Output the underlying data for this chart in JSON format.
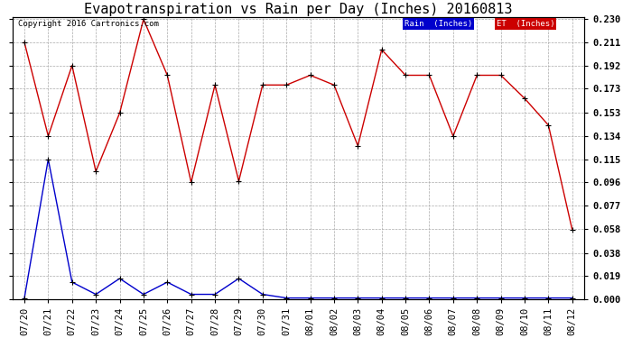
{
  "title": "Evapotranspiration vs Rain per Day (Inches) 20160813",
  "copyright_text": "Copyright 2016 Cartronics.com",
  "dates": [
    "07/20",
    "07/21",
    "07/22",
    "07/23",
    "07/24",
    "07/25",
    "07/26",
    "07/27",
    "07/28",
    "07/29",
    "07/30",
    "07/31",
    "08/01",
    "08/02",
    "08/03",
    "08/04",
    "08/05",
    "08/06",
    "08/07",
    "08/08",
    "08/09",
    "08/10",
    "08/11",
    "08/12"
  ],
  "et_values": [
    0.211,
    0.134,
    0.192,
    0.105,
    0.153,
    0.23,
    0.184,
    0.096,
    0.176,
    0.097,
    0.176,
    0.176,
    0.184,
    0.176,
    0.126,
    0.205,
    0.184,
    0.184,
    0.134,
    0.184,
    0.184,
    0.165,
    0.143,
    0.057
  ],
  "rain_values": [
    0.001,
    0.115,
    0.014,
    0.004,
    0.017,
    0.004,
    0.014,
    0.004,
    0.004,
    0.017,
    0.004,
    0.001,
    0.001,
    0.001,
    0.001,
    0.001,
    0.001,
    0.001,
    0.001,
    0.001,
    0.001,
    0.001,
    0.001,
    0.001
  ],
  "et_color": "#cc0000",
  "rain_color": "#0000cc",
  "background_color": "#ffffff",
  "grid_color": "#aaaaaa",
  "ylim_min": 0.0,
  "ylim_max": 0.2318,
  "yticks": [
    0.0,
    0.019,
    0.038,
    0.058,
    0.077,
    0.096,
    0.115,
    0.134,
    0.153,
    0.173,
    0.192,
    0.211,
    0.23
  ],
  "title_fontsize": 11,
  "copyright_fontsize": 6.5,
  "tick_fontsize": 7.5,
  "legend_rain_bg": "#0000cc",
  "legend_et_bg": "#cc0000",
  "legend_text_rain": "Rain  (Inches)",
  "legend_text_et": "ET  (Inches)"
}
